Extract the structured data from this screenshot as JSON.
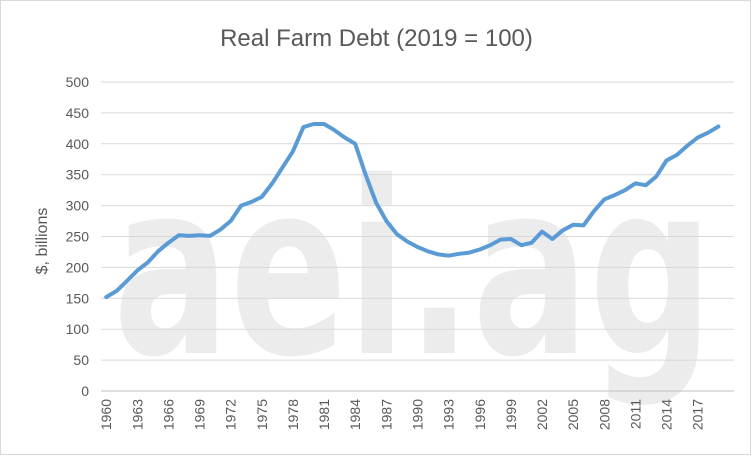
{
  "chart_data": {
    "type": "line",
    "title": "Real Farm Debt (2019 = 100)",
    "xlabel": "",
    "ylabel": "$, billions",
    "ylim": [
      0,
      500
    ],
    "yticks": [
      0,
      50,
      100,
      150,
      200,
      250,
      300,
      350,
      400,
      450,
      500
    ],
    "xtick_labels": [
      "1960",
      "1963",
      "1966",
      "1969",
      "1972",
      "1975",
      "1978",
      "1981",
      "1984",
      "1987",
      "1990",
      "1993",
      "1996",
      "1999",
      "2002",
      "2005",
      "2008",
      "2011",
      "2014",
      "2017"
    ],
    "grid": "horizontal",
    "legend": "none",
    "line_color": "#5b9bd5",
    "watermark": "aei.ag",
    "series": [
      {
        "x": [
          1960,
          1961,
          1962,
          1963,
          1964,
          1965,
          1966,
          1967,
          1968,
          1969,
          1970,
          1971,
          1972,
          1973,
          1974,
          1975,
          1976,
          1977,
          1978,
          1979,
          1980,
          1981,
          1982,
          1983,
          1984,
          1985,
          1986,
          1987,
          1988,
          1989,
          1990,
          1991,
          1992,
          1993,
          1994,
          1995,
          1996,
          1997,
          1998,
          1999,
          2000,
          2001,
          2002,
          2003,
          2004,
          2005,
          2006,
          2007,
          2008,
          2009,
          2010,
          2011,
          2012,
          2013,
          2014,
          2015,
          2016,
          2017,
          2018,
          2019
        ],
        "values": [
          152,
          162,
          178,
          195,
          208,
          226,
          240,
          252,
          251,
          252,
          251,
          261,
          275,
          300,
          306,
          314,
          336,
          362,
          388,
          427,
          432,
          432,
          422,
          410,
          400,
          350,
          305,
          275,
          254,
          242,
          233,
          226,
          221,
          219,
          222,
          224,
          229,
          236,
          245,
          246,
          236,
          240,
          258,
          246,
          260,
          269,
          268,
          291,
          310,
          317,
          325,
          336,
          333,
          347,
          373,
          382,
          397,
          410,
          418,
          428
        ]
      }
    ]
  }
}
